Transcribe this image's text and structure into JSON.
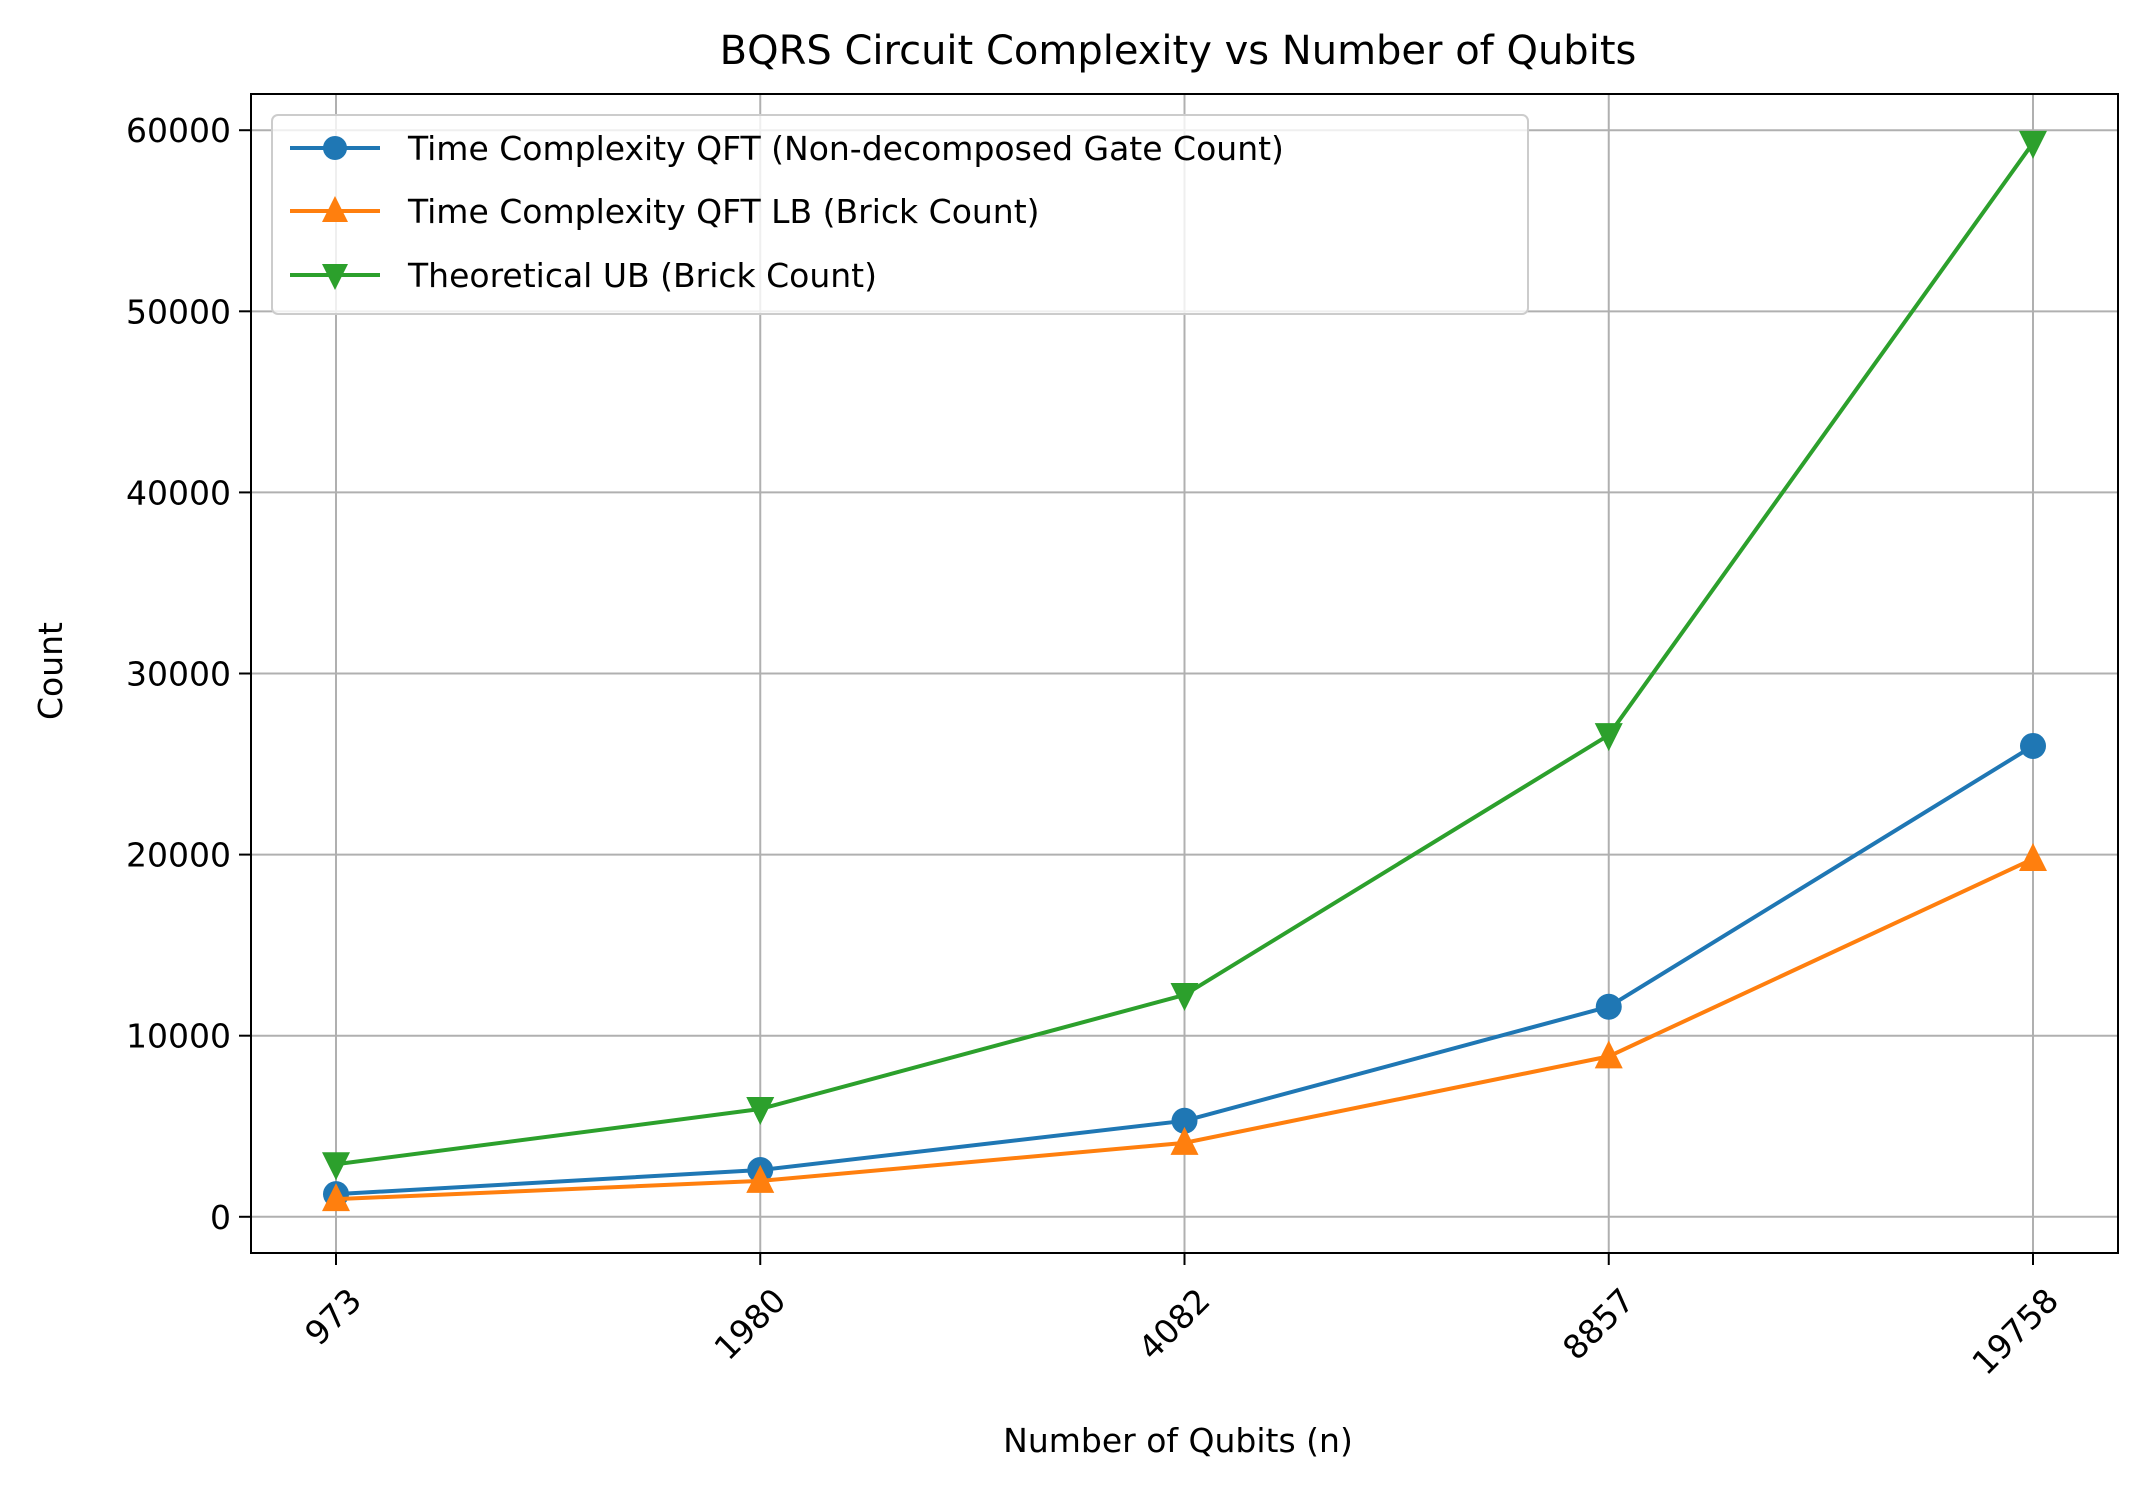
{
  "chart_data": {
    "type": "line",
    "title": "BQRS Circuit Complexity vs Number of Qubits",
    "xlabel": "Number of Qubits (n)",
    "ylabel": "Count",
    "categories": [
      "973",
      "1980",
      "4082",
      "8857",
      "19758"
    ],
    "ylim": [
      -2000,
      62000
    ],
    "yticks": [
      0,
      10000,
      20000,
      30000,
      40000,
      50000,
      60000
    ],
    "ytick_labels": [
      "0",
      "10000",
      "20000",
      "30000",
      "40000",
      "50000",
      "60000"
    ],
    "grid": true,
    "legend_position": "top-left",
    "series": [
      {
        "name": "Time Complexity QFT (Non-decomposed Gate Count)",
        "color": "#1f77b4",
        "marker": "circle",
        "values": [
          1250,
          2580,
          5300,
          11600,
          26000
        ]
      },
      {
        "name": "Time Complexity QFT LB (Brick Count)",
        "color": "#ff7f0e",
        "marker": "triangle-up",
        "values": [
          973,
          1980,
          4082,
          8857,
          19758
        ]
      },
      {
        "name": "Theoretical UB (Brick Count)",
        "color": "#2ca02c",
        "marker": "triangle-down",
        "values": [
          2900,
          5950,
          12250,
          26600,
          59300
        ]
      }
    ]
  }
}
